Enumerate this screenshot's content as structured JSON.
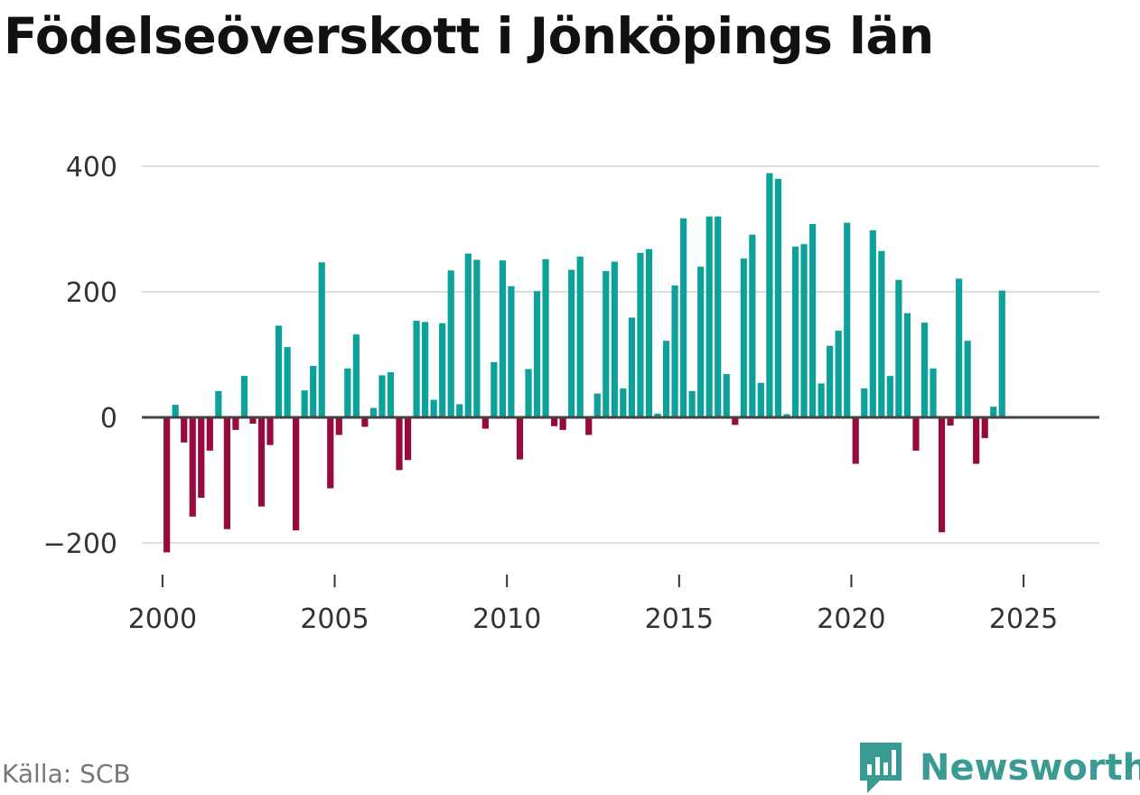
{
  "title": "Födelseöverskott i Jönköpings län",
  "source": "Källa: SCB",
  "brand": "Newsworthy",
  "colors": {
    "positive": "#0ca29a",
    "negative": "#970a3d",
    "grid": "#dddddd",
    "zero": "#444444",
    "brand": "#3a9a94"
  },
  "chart_data": {
    "type": "bar",
    "title": "Födelseöverskott i Jönköpings län",
    "xlabel": "",
    "ylabel": "",
    "ylim": [
      -230,
      420
    ],
    "xlim": [
      1999.4,
      2027.2
    ],
    "yticks": [
      400,
      200,
      0,
      -200
    ],
    "ytick_labels": [
      "400",
      "200",
      "0",
      "−200"
    ],
    "xticks": [
      2000,
      2005,
      2010,
      2015,
      2020,
      2025
    ],
    "xtick_labels": [
      "2000",
      "2005",
      "2010",
      "2015",
      "2020",
      "2025"
    ],
    "series": [
      {
        "name": "Födelseöverskott",
        "start_year": 2000,
        "periods_per_year": 4,
        "values": [
          -215,
          20,
          -40,
          -158,
          -128,
          -53,
          42,
          -178,
          -20,
          66,
          -10,
          -142,
          -44,
          146,
          112,
          -180,
          43,
          82,
          247,
          -113,
          -28,
          78,
          132,
          -15,
          15,
          67,
          72,
          -84,
          -68,
          154,
          152,
          28,
          150,
          234,
          21,
          261,
          251,
          -18,
          88,
          250,
          209,
          -67,
          77,
          201,
          252,
          -14,
          -20,
          235,
          256,
          -28,
          38,
          233,
          248,
          46,
          159,
          262,
          268,
          6,
          122,
          210,
          317,
          42,
          240,
          320,
          320,
          69,
          -12,
          253,
          291,
          55,
          389,
          380,
          5,
          272,
          276,
          308,
          54,
          114,
          138,
          310,
          -74,
          46,
          298,
          265,
          66,
          219,
          166,
          -53,
          151,
          78,
          -183,
          -13,
          221,
          122,
          -74,
          -33,
          17,
          202
        ]
      }
    ]
  }
}
